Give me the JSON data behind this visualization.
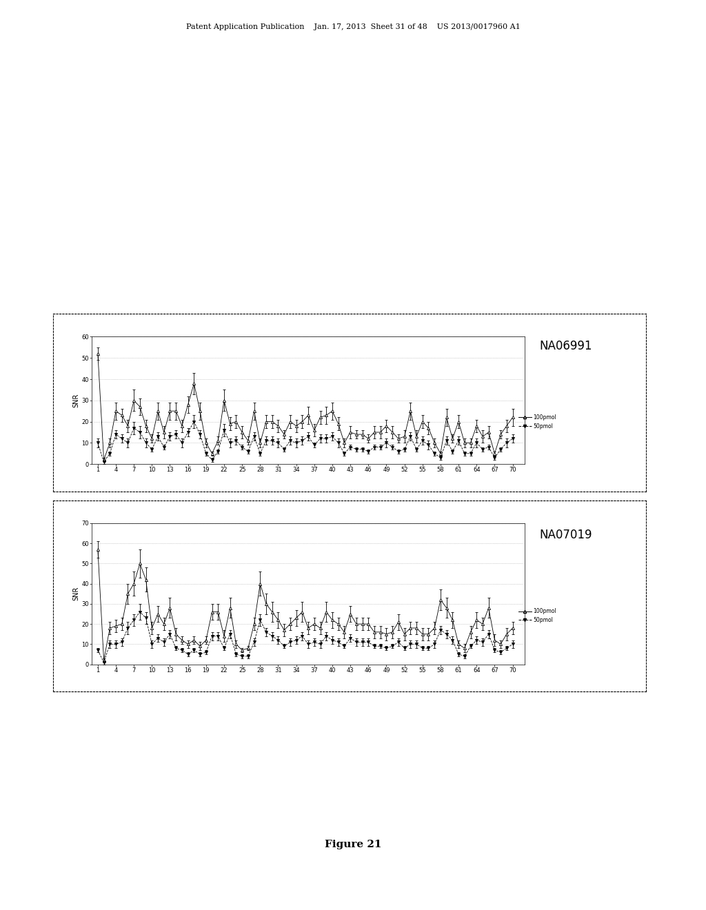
{
  "header_text": "Patent Application Publication    Jan. 17, 2013  Sheet 31 of 48    US 2013/0017960 A1",
  "figure_label": "Figure 21",
  "background_color": "#ffffff",
  "chart1": {
    "title": "NA06991",
    "ylabel": "SNR",
    "ylim": [
      0,
      60
    ],
    "yticks": [
      0,
      10,
      20,
      30,
      40,
      50,
      60
    ],
    "xtick_labels": [
      "1",
      "4",
      "7",
      "10",
      "13",
      "16",
      "19",
      "22",
      "25",
      "28",
      "31",
      "34",
      "37",
      "40",
      "43",
      "46",
      "49",
      "52",
      "55",
      "58",
      "61",
      "64",
      "67",
      "70"
    ],
    "series1_label": "100pmol",
    "series2_label": "50pmol",
    "series1_y": [
      52,
      2,
      10,
      25,
      23,
      18,
      30,
      27,
      18,
      12,
      25,
      15,
      25,
      25,
      18,
      28,
      38,
      25,
      10,
      5,
      11,
      30,
      19,
      20,
      15,
      11,
      25,
      10,
      20,
      20,
      18,
      14,
      20,
      18,
      20,
      23,
      16,
      22,
      23,
      25,
      19,
      10,
      15,
      14,
      14,
      12,
      15,
      15,
      18,
      15,
      12,
      13,
      25,
      13,
      20,
      17,
      10,
      5,
      22,
      12,
      20,
      10,
      10,
      18,
      13,
      15,
      5,
      14,
      18,
      22
    ],
    "series2_y": [
      10,
      1,
      5,
      14,
      12,
      10,
      17,
      15,
      10,
      7,
      13,
      8,
      13,
      14,
      10,
      15,
      20,
      14,
      5,
      2,
      6,
      16,
      10,
      11,
      8,
      6,
      13,
      5,
      11,
      11,
      10,
      7,
      11,
      10,
      11,
      13,
      9,
      12,
      12,
      13,
      10,
      5,
      8,
      7,
      7,
      6,
      8,
      8,
      10,
      8,
      6,
      7,
      13,
      7,
      11,
      9,
      5,
      3,
      11,
      6,
      11,
      5,
      5,
      10,
      7,
      8,
      3,
      7,
      10,
      12
    ],
    "series1_err": [
      3,
      1,
      2,
      4,
      3,
      3,
      5,
      4,
      3,
      2,
      4,
      3,
      4,
      4,
      3,
      4,
      5,
      4,
      2,
      1,
      2,
      5,
      3,
      3,
      3,
      2,
      4,
      2,
      3,
      3,
      3,
      2,
      3,
      3,
      3,
      4,
      3,
      3,
      4,
      4,
      3,
      2,
      3,
      2,
      2,
      2,
      3,
      3,
      3,
      3,
      2,
      3,
      4,
      3,
      3,
      3,
      2,
      1,
      4,
      2,
      3,
      2,
      2,
      3,
      3,
      3,
      1,
      2,
      3,
      4
    ],
    "series2_err": [
      2,
      1,
      1,
      2,
      2,
      2,
      3,
      3,
      2,
      1,
      2,
      1,
      2,
      2,
      2,
      2,
      3,
      2,
      1,
      1,
      1,
      3,
      2,
      2,
      1,
      1,
      2,
      1,
      2,
      2,
      2,
      1,
      2,
      2,
      2,
      2,
      1,
      2,
      2,
      2,
      2,
      1,
      1,
      1,
      1,
      1,
      1,
      1,
      2,
      1,
      1,
      1,
      2,
      1,
      2,
      2,
      1,
      1,
      2,
      1,
      2,
      1,
      1,
      2,
      1,
      1,
      1,
      1,
      2,
      2
    ]
  },
  "chart2": {
    "title": "NA07019",
    "ylabel": "SNR",
    "ylim": [
      0,
      70
    ],
    "yticks": [
      0,
      10,
      20,
      30,
      40,
      50,
      60,
      70
    ],
    "xtick_labels": [
      "1",
      "4",
      "7",
      "10",
      "13",
      "16",
      "19",
      "22",
      "25",
      "28",
      "31",
      "34",
      "37",
      "40",
      "43",
      "46",
      "49",
      "52",
      "55",
      "58",
      "61",
      "64",
      "67",
      "70"
    ],
    "series1_label": "100pmol",
    "series2_label": "50pmol",
    "series1_y": [
      57,
      2,
      18,
      19,
      20,
      35,
      40,
      50,
      42,
      18,
      25,
      20,
      28,
      15,
      12,
      10,
      12,
      9,
      12,
      26,
      26,
      14,
      28,
      10,
      7,
      8,
      20,
      40,
      30,
      26,
      22,
      17,
      20,
      23,
      26,
      18,
      20,
      18,
      26,
      22,
      20,
      16,
      25,
      20,
      20,
      20,
      16,
      16,
      15,
      16,
      21,
      15,
      18,
      18,
      15,
      15,
      18,
      32,
      28,
      22,
      10,
      8,
      16,
      22,
      20,
      28,
      12,
      10,
      15,
      18
    ],
    "series2_y": [
      7,
      1,
      10,
      10,
      11,
      18,
      22,
      26,
      23,
      10,
      13,
      11,
      15,
      8,
      7,
      5,
      7,
      5,
      6,
      14,
      14,
      8,
      15,
      5,
      4,
      4,
      11,
      22,
      16,
      14,
      12,
      9,
      11,
      12,
      14,
      10,
      11,
      10,
      14,
      12,
      11,
      9,
      13,
      11,
      11,
      11,
      9,
      9,
      8,
      9,
      11,
      8,
      10,
      10,
      8,
      8,
      10,
      17,
      15,
      12,
      5,
      4,
      9,
      12,
      11,
      15,
      7,
      6,
      8,
      10
    ],
    "series1_err": [
      4,
      1,
      3,
      3,
      3,
      5,
      6,
      7,
      6,
      3,
      4,
      3,
      5,
      3,
      2,
      2,
      2,
      2,
      2,
      4,
      4,
      3,
      5,
      2,
      1,
      1,
      3,
      6,
      5,
      5,
      4,
      3,
      3,
      4,
      5,
      3,
      3,
      3,
      5,
      4,
      3,
      3,
      4,
      3,
      3,
      3,
      3,
      3,
      3,
      3,
      4,
      3,
      3,
      3,
      3,
      3,
      3,
      5,
      5,
      4,
      2,
      2,
      3,
      4,
      3,
      5,
      3,
      2,
      3,
      3
    ],
    "series2_err": [
      1,
      1,
      2,
      2,
      2,
      3,
      3,
      4,
      3,
      2,
      2,
      2,
      2,
      1,
      1,
      1,
      1,
      1,
      1,
      2,
      2,
      1,
      2,
      1,
      1,
      1,
      2,
      3,
      2,
      2,
      2,
      1,
      2,
      2,
      2,
      2,
      2,
      2,
      2,
      2,
      2,
      1,
      2,
      2,
      2,
      2,
      1,
      1,
      1,
      1,
      2,
      1,
      2,
      2,
      1,
      1,
      2,
      2,
      2,
      2,
      1,
      1,
      1,
      2,
      2,
      2,
      1,
      1,
      1,
      2
    ]
  }
}
